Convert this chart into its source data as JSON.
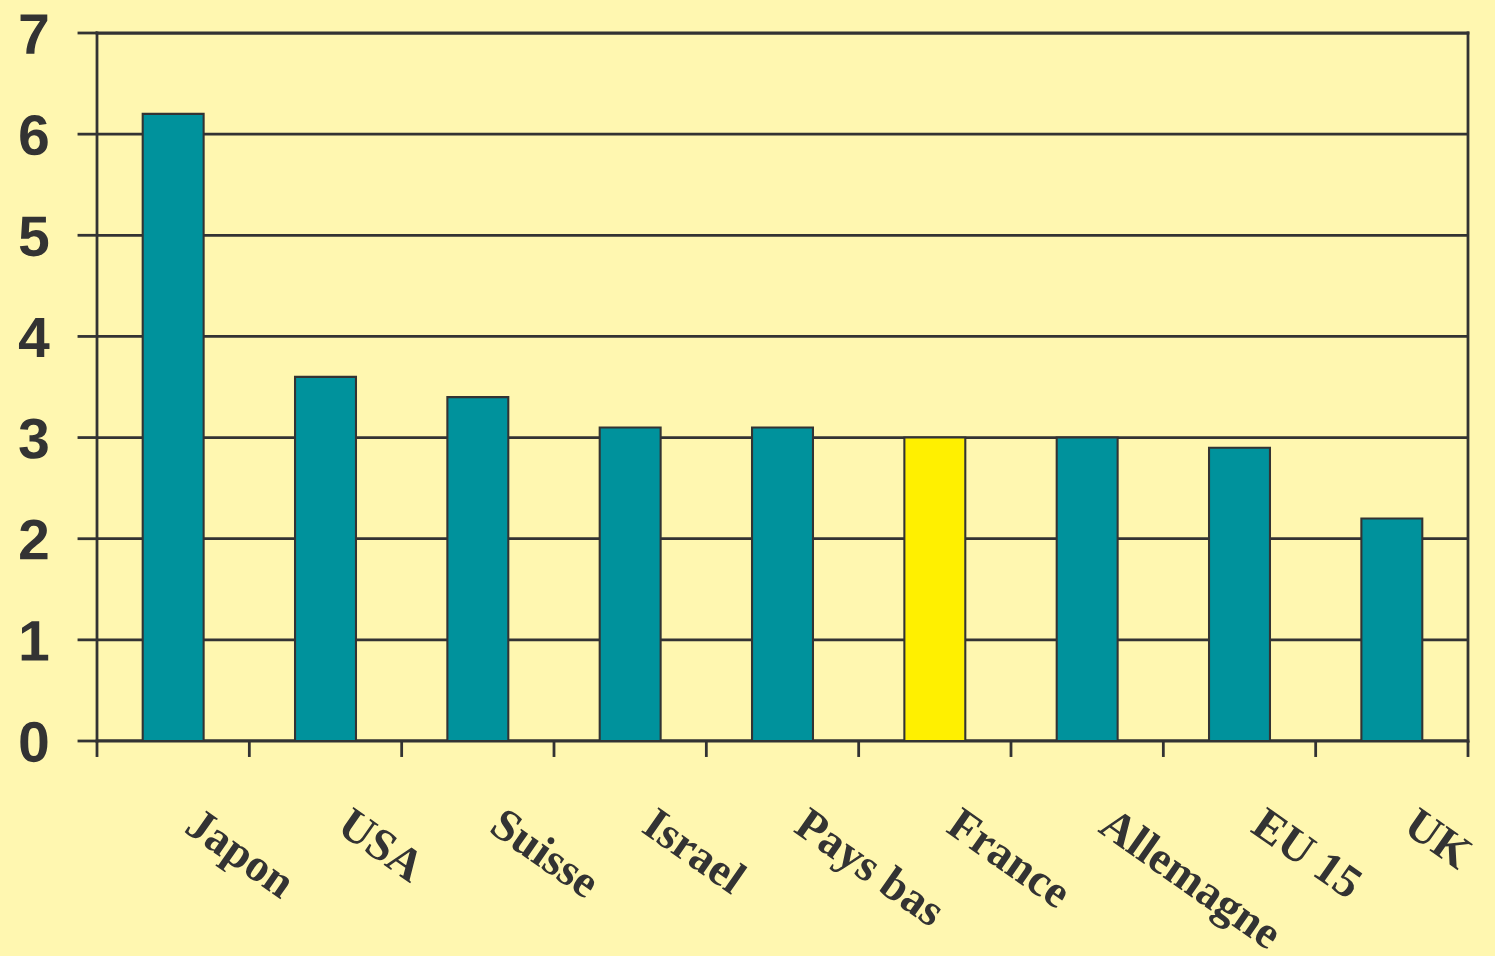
{
  "chart_data": {
    "type": "bar",
    "categories": [
      "Japon",
      "USA",
      "Suisse",
      "Israel",
      "Pays bas",
      "France",
      "Allemagne",
      "EU 15",
      "UK"
    ],
    "values": [
      6.2,
      3.6,
      3.4,
      3.1,
      3.1,
      3.0,
      3.0,
      2.9,
      2.2
    ],
    "colors": [
      "#00929c",
      "#00929c",
      "#00929c",
      "#00929c",
      "#00929c",
      "#fff000",
      "#00929c",
      "#00929c",
      "#00929c"
    ],
    "ylim": [
      0,
      7
    ],
    "yticks": [
      0,
      1,
      2,
      3,
      4,
      5,
      6,
      7
    ],
    "grid": "y"
  }
}
